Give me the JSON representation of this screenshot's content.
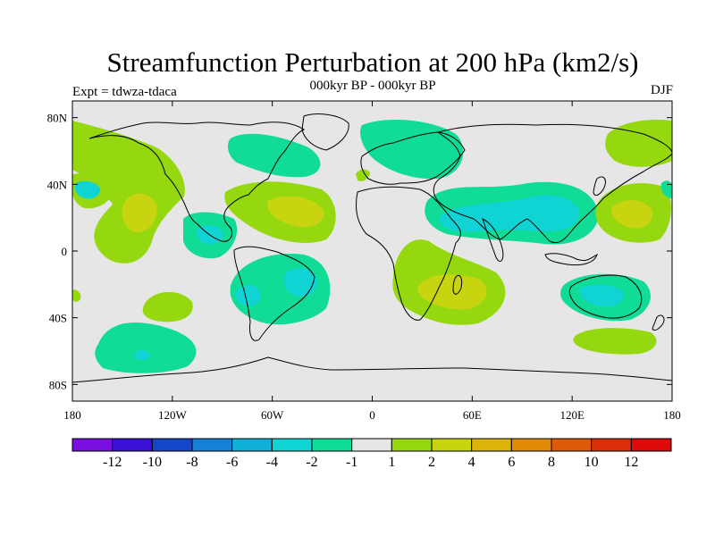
{
  "title": "Streamfunction Perturbation at 200 hPa (km2/s)",
  "subtitle": "000kyr BP - 000kyr BP",
  "left_string": "Expt = tdwza-tdaca",
  "right_string": "DJF",
  "map": {
    "projection": "cylindrical equidistant",
    "lon_range": [
      -180,
      180
    ],
    "lat_range": [
      -90,
      90
    ],
    "background": "#e6e6e6",
    "lon_ticks": [
      {
        "value": -180,
        "label": "180"
      },
      {
        "value": -120,
        "label": "120W"
      },
      {
        "value": -60,
        "label": "60W"
      },
      {
        "value": 0,
        "label": "0"
      },
      {
        "value": 60,
        "label": "60E"
      },
      {
        "value": 120,
        "label": "120E"
      },
      {
        "value": 180,
        "label": "180"
      }
    ],
    "lat_ticks": [
      {
        "value": 80,
        "label": "80N"
      },
      {
        "value": 40,
        "label": "40N"
      },
      {
        "value": 0,
        "label": "0"
      },
      {
        "value": -40,
        "label": "40S"
      },
      {
        "value": -80,
        "label": "80S"
      }
    ]
  },
  "colorbar": {
    "colors": [
      "#7a10e0",
      "#3a12d6",
      "#1646c8",
      "#1680d6",
      "#10b0d8",
      "#10d4d4",
      "#10dc96",
      "#e6e6e6",
      "#96d810",
      "#c8d410",
      "#dcb40a",
      "#e08a08",
      "#dc5a0a",
      "#dc300a",
      "#dc0a0a"
    ],
    "labels": [
      "-12",
      "-10",
      "-8",
      "-6",
      "-4",
      "-2",
      "-1",
      "1",
      "2",
      "4",
      "6",
      "8",
      "10",
      "12"
    ]
  },
  "chart_data": {
    "type": "heatmap",
    "variable": "200 hPa streamfunction perturbation",
    "units": "km2/s",
    "levels": [
      -12,
      -10,
      -8,
      -6,
      -4,
      -2,
      -1,
      1,
      2,
      4,
      6,
      8,
      10,
      12
    ],
    "regions": [
      {
        "lon_range": [
          -180,
          -150
        ],
        "lat_range": [
          45,
          80
        ],
        "level_range": [
          1,
          2
        ],
        "color": "#96d810"
      },
      {
        "lon_range": [
          -170,
          -150
        ],
        "lat_range": [
          35,
          45
        ],
        "level_range": [
          -4,
          -2
        ],
        "color": "#10d4d4"
      },
      {
        "lon_range": [
          -160,
          -135
        ],
        "lat_range": [
          -25,
          60
        ],
        "level_range": [
          1,
          2
        ],
        "color": "#96d810"
      },
      {
        "lon_range": [
          -150,
          -135
        ],
        "lat_range": [
          10,
          35
        ],
        "level_range": [
          2,
          4
        ],
        "color": "#c8d410"
      },
      {
        "lon_range": [
          -110,
          -85
        ],
        "lat_range": [
          -10,
          25
        ],
        "level_range": [
          -2,
          -1
        ],
        "color": "#10dc96"
      },
      {
        "lon_range": [
          -100,
          -90
        ],
        "lat_range": [
          5,
          15
        ],
        "level_range": [
          -4,
          -2
        ],
        "color": "#10d4d4"
      },
      {
        "lon_range": [
          -85,
          -65
        ],
        "lat_range": [
          50,
          75
        ],
        "level_range": [
          -2,
          -1
        ],
        "color": "#10dc96"
      },
      {
        "lon_range": [
          -90,
          -35
        ],
        "lat_range": [
          15,
          45
        ],
        "level_range": [
          1,
          2
        ],
        "color": "#96d810"
      },
      {
        "lon_range": [
          -75,
          -40
        ],
        "lat_range": [
          20,
          35
        ],
        "level_range": [
          2,
          4
        ],
        "color": "#c8d410"
      },
      {
        "lon_range": [
          -90,
          -30
        ],
        "lat_range": [
          -35,
          5
        ],
        "level_range": [
          -2,
          -1
        ],
        "color": "#10dc96"
      },
      {
        "lon_range": [
          -60,
          -35
        ],
        "lat_range": [
          -20,
          -5
        ],
        "level_range": [
          -4,
          -2
        ],
        "color": "#10d4d4"
      },
      {
        "lon_range": [
          -170,
          -120
        ],
        "lat_range": [
          -75,
          -45
        ],
        "level_range": [
          -2,
          -1
        ],
        "color": "#10dc96"
      },
      {
        "lon_range": [
          -180,
          -145
        ],
        "lat_range": [
          -45,
          -25
        ],
        "level_range": [
          1,
          2
        ],
        "color": "#96d810"
      },
      {
        "lon_range": [
          -20,
          5
        ],
        "lat_range": [
          50,
          75
        ],
        "level_range": [
          -2,
          -1
        ],
        "color": "#10dc96"
      },
      {
        "lon_range": [
          10,
          60
        ],
        "lat_range": [
          55,
          85
        ],
        "level_range": [
          -2,
          -1
        ],
        "color": "#10dc96"
      },
      {
        "lon_range": [
          30,
          140
        ],
        "lat_range": [
          10,
          45
        ],
        "level_range": [
          -2,
          -1
        ],
        "color": "#10dc96"
      },
      {
        "lon_range": [
          50,
          130
        ],
        "lat_range": [
          15,
          35
        ],
        "level_range": [
          -4,
          -2
        ],
        "color": "#10d4d4"
      },
      {
        "lon_range": [
          10,
          55
        ],
        "lat_range": [
          -45,
          -5
        ],
        "level_range": [
          1,
          2
        ],
        "color": "#96d810"
      },
      {
        "lon_range": [
          25,
          50
        ],
        "lat_range": [
          -40,
          -20
        ],
        "level_range": [
          2,
          4
        ],
        "color": "#c8d410"
      },
      {
        "lon_range": [
          115,
          160
        ],
        "lat_range": [
          -45,
          -20
        ],
        "level_range": [
          -2,
          -1
        ],
        "color": "#10dc96"
      },
      {
        "lon_range": [
          120,
          150
        ],
        "lat_range": [
          -40,
          -25
        ],
        "level_range": [
          -4,
          -2
        ],
        "color": "#10d4d4"
      },
      {
        "lon_range": [
          135,
          180
        ],
        "lat_range": [
          0,
          40
        ],
        "level_range": [
          1,
          2
        ],
        "color": "#96d810"
      },
      {
        "lon_range": [
          140,
          170
        ],
        "lat_range": [
          10,
          30
        ],
        "level_range": [
          2,
          4
        ],
        "color": "#c8d410"
      },
      {
        "lon_range": [
          145,
          180
        ],
        "lat_range": [
          55,
          80
        ],
        "level_range": [
          1,
          2
        ],
        "color": "#96d810"
      },
      {
        "lon_range": [
          120,
          175
        ],
        "lat_range": [
          -65,
          -50
        ],
        "level_range": [
          1,
          2
        ],
        "color": "#96d810"
      },
      {
        "lon_range": [
          170,
          180
        ],
        "lat_range": [
          35,
          45
        ],
        "level_range": [
          -2,
          -1
        ],
        "color": "#10dc96"
      }
    ]
  }
}
